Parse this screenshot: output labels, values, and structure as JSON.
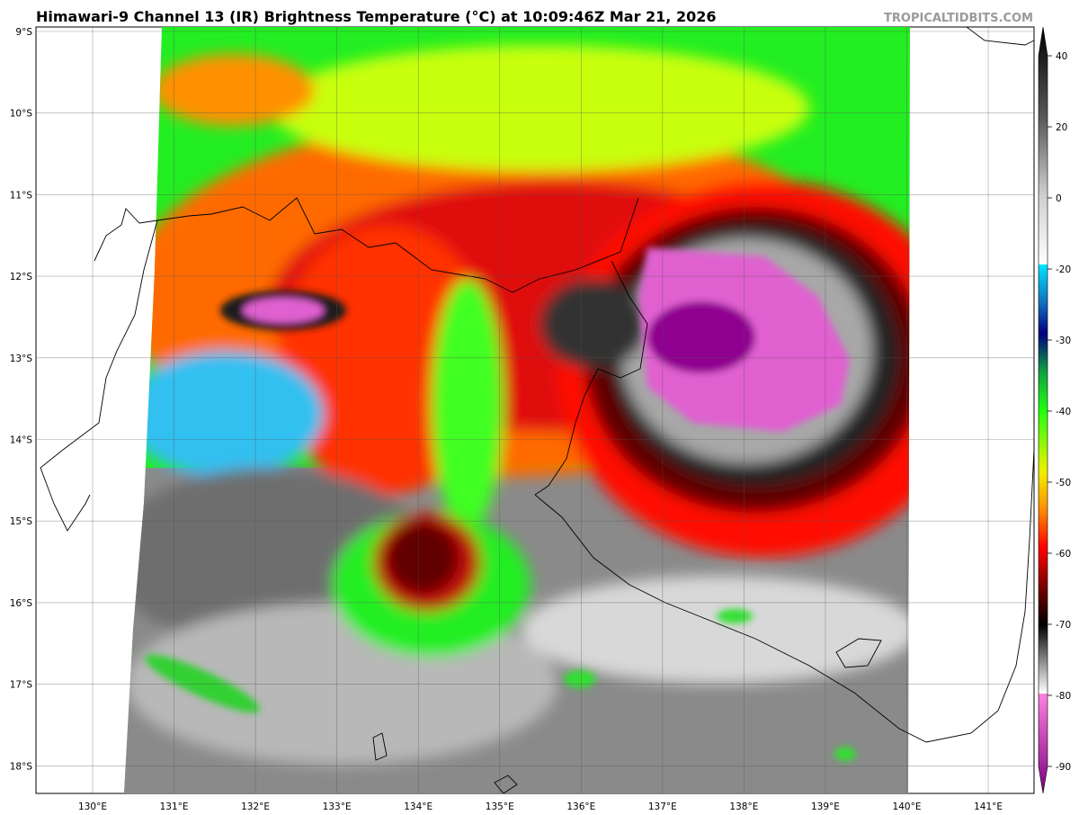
{
  "header": {
    "title": "Himawari-9 Channel 13 (IR) Brightness Temperature (°C) at 10:09:46Z Mar 21, 2026",
    "watermark": "TROPICALTIDBITS.COM"
  },
  "map": {
    "latitude_labels": [
      "9°S",
      "10°S",
      "11°S",
      "12°S",
      "13°S",
      "14°S",
      "15°S",
      "16°S",
      "17°S",
      "18°S"
    ],
    "longitude_labels": [
      "130°E",
      "131°E",
      "132°E",
      "133°E",
      "134°E",
      "135°E",
      "136°E",
      "137°E",
      "138°E",
      "139°E",
      "140°E",
      "141°E"
    ]
  },
  "colorbar": {
    "ticks": [
      40,
      20,
      0,
      -20,
      -30,
      -40,
      -50,
      -60,
      -70,
      -80,
      -90
    ]
  }
}
